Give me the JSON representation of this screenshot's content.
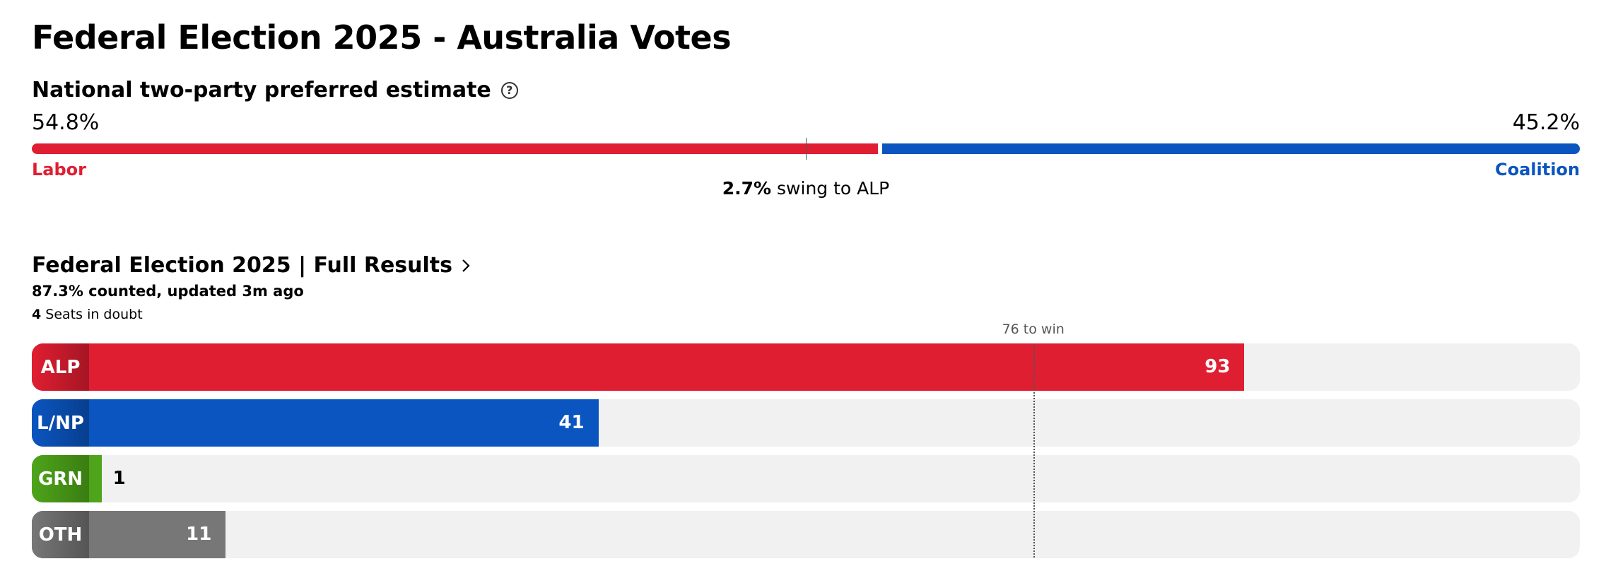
{
  "header": {
    "title": "Federal Election 2025 - Australia Votes"
  },
  "tpp": {
    "heading": "National two-party preferred estimate",
    "left": {
      "pct_label": "54.8%",
      "value": 54.8,
      "party": "Labor",
      "color": "#e01e32"
    },
    "right": {
      "pct_label": "45.2%",
      "value": 45.2,
      "party": "Coalition",
      "color": "#0b55c0"
    },
    "swing_value": "2.7%",
    "swing_text": "swing to ALP"
  },
  "results": {
    "link_label": "Federal Election 2025 | Full Results",
    "counted": "87.3% counted, updated 3m ago",
    "doubt_count": "4",
    "doubt_text": "Seats in doubt"
  },
  "chart_data": {
    "type": "bar",
    "categories": [
      "ALP",
      "L/NP",
      "GRN",
      "OTH"
    ],
    "values": [
      93,
      41,
      1,
      11
    ],
    "value_labels": [
      "93",
      "41",
      "1",
      "11"
    ],
    "colors": [
      "#e01e32",
      "#0b55c0",
      "#4ea41a",
      "#777777"
    ],
    "badge_colors": [
      "#a51624",
      "#083f8f",
      "#3a7d12",
      "#555555"
    ],
    "xlim": [
      0,
      120
    ],
    "win_threshold": 76,
    "win_label": "76 to win"
  }
}
